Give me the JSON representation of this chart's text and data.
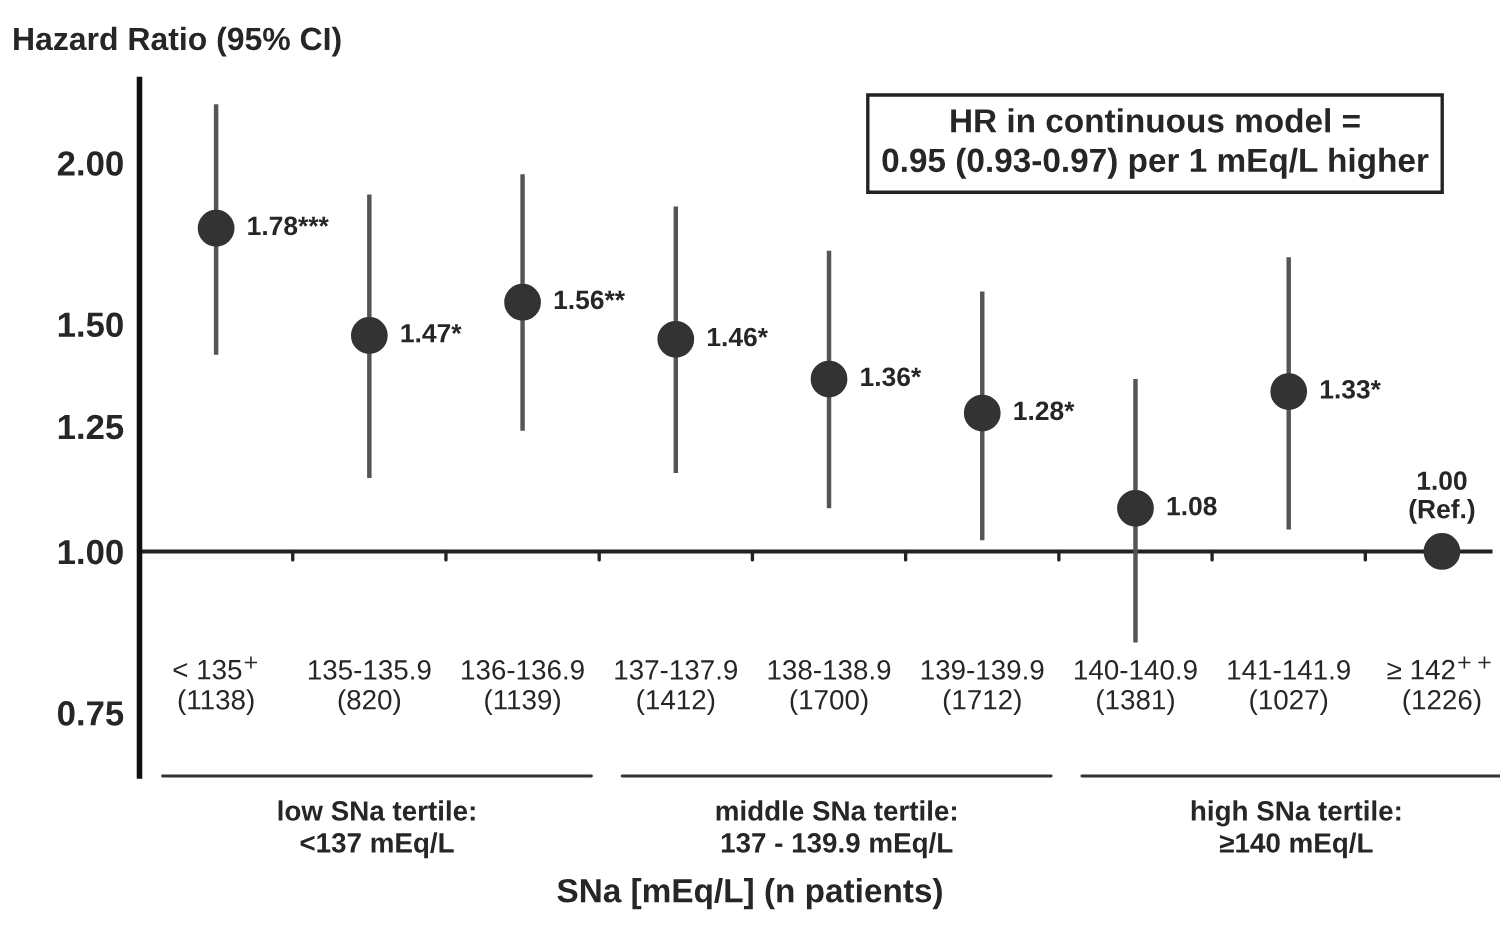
{
  "chart_data": {
    "type": "scatter",
    "ylabel": "Hazard Ratio (95% CI)",
    "xlabel": "SNa [mEq/L] (n patients)",
    "categories": [
      "< 135$^{+}$\n(1138)",
      "135-135.9\n(820)",
      "136-136.9\n(1139)",
      "137-137.9\n(1412)",
      "138-138.9\n(1700)",
      "139-139.9\n(1712)",
      "140-140.9\n(1381)",
      "141-141.9\n(1027)",
      "≥ 142$^{++}$\n(1226)"
    ],
    "series": [
      {
        "color": "#333333",
        "values": [
          1.78,
          1.47,
          1.56,
          1.46,
          1.36,
          1.28,
          1.08,
          1.33,
          1.0
        ],
        "errors": [
          [
            1.42,
            2.22
          ],
          [
            1.14,
            1.89
          ],
          [
            1.24,
            1.96
          ],
          [
            1.15,
            1.85
          ],
          [
            1.08,
            1.71
          ],
          [
            1.02,
            1.59
          ],
          [
            0.85,
            1.36
          ],
          [
            1.04,
            1.69
          ],
          null
        ],
        "value_labels": [
          "1.78***",
          "1.47*",
          "1.56**",
          "1.46*",
          "1.36*",
          "1.28*",
          "1.08",
          "1.33*",
          "1.00\n(Ref.)"
        ]
      }
    ],
    "log": "y",
    "ylim": [
      0.67,
      2.32
    ],
    "yticks": [
      0.75,
      {
        "value": 1.0,
        "label": "1.00"
      },
      1.25,
      {
        "value": 1.5,
        "label": "1.50"
      },
      {
        "value": 2.0,
        "label": "2.00"
      }
    ],
    "ref_lines": [
      {
        "axis": "y",
        "value": 1.0,
        "color": "#222222"
      }
    ],
    "annotations": [
      "HR in continuous model =\n0.95 (0.93-0.97) per 1 mEq/L higher",
      "low SNa tertile:\n<137 mEq/L",
      "middle SNa tertile:\n137 - 139.9 mEq/L",
      "high SNa tertile:\n≥140 mEq/L"
    ],
    "marker": "circle",
    "grid": false
  }
}
